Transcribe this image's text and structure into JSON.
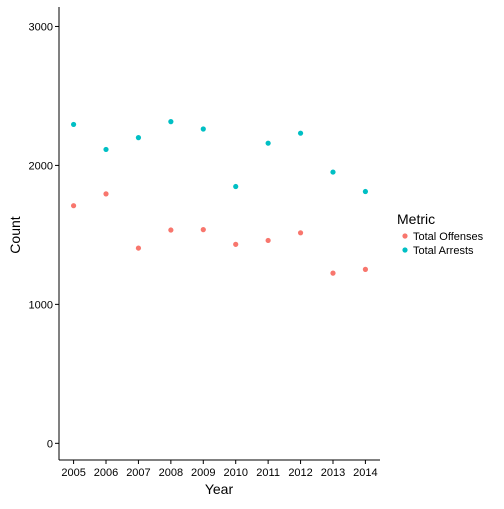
{
  "chart_data": {
    "type": "scatter",
    "title": "",
    "xlabel": "Year",
    "ylabel": "Count",
    "x": [
      2005,
      2006,
      2007,
      2008,
      2009,
      2010,
      2011,
      2012,
      2013,
      2014
    ],
    "x_tick_labels": [
      "2005",
      "2006",
      "2007",
      "2008",
      "2009",
      "2010",
      "2011",
      "2012",
      "2013",
      "2014"
    ],
    "y_ticks": [
      0,
      1000,
      2000,
      3000
    ],
    "y_tick_labels": [
      "0",
      "1000",
      "2000",
      "3000"
    ],
    "ylim": [
      -120,
      3140
    ],
    "grid": false,
    "legend": {
      "title": "Metric",
      "placement": "right"
    },
    "series": [
      {
        "name": "Total Offenses",
        "color": "#F8766D",
        "values": [
          1710,
          1795,
          1405,
          1535,
          1538,
          1432,
          1460,
          1515,
          1225,
          1252
        ]
      },
      {
        "name": "Total Arrests",
        "color": "#00BFC4",
        "values": [
          2295,
          2115,
          2200,
          2315,
          2262,
          1848,
          2160,
          2232,
          1952,
          1812
        ]
      }
    ]
  }
}
